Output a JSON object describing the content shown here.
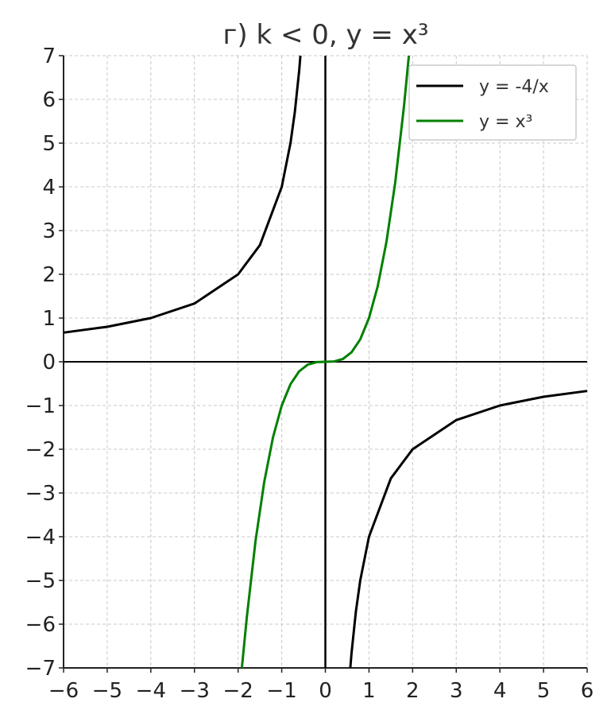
{
  "chart_data": {
    "type": "line",
    "title": "г) k < 0, y = x³",
    "xlabel": "",
    "ylabel": "",
    "xlim": [
      -6,
      6
    ],
    "ylim": [
      -7,
      7
    ],
    "grid": true,
    "legend_position": "top-right",
    "x_ticks": [
      -6,
      -5,
      -4,
      -3,
      -2,
      -1,
      0,
      1,
      2,
      3,
      4,
      5,
      6
    ],
    "y_ticks": [
      -7,
      -6,
      -5,
      -4,
      -3,
      -2,
      -1,
      0,
      1,
      2,
      3,
      4,
      5,
      6,
      7
    ],
    "x_tick_labels": [
      "−6",
      "−5",
      "−4",
      "−3",
      "−2",
      "−1",
      "0",
      "1",
      "2",
      "3",
      "4",
      "5",
      "6"
    ],
    "y_tick_labels": [
      "−7",
      "−6",
      "−5",
      "−4",
      "−3",
      "−2",
      "−1",
      "0",
      "1",
      "2",
      "3",
      "4",
      "5",
      "6",
      "7"
    ],
    "series": [
      {
        "name": "y = -4/x",
        "color": "#000000",
        "segments": [
          [
            [
              -6,
              0.667
            ],
            [
              -5,
              0.8
            ],
            [
              -4,
              1.0
            ],
            [
              -3,
              1.333
            ],
            [
              -2,
              2.0
            ],
            [
              -1.5,
              2.667
            ],
            [
              -1,
              4.0
            ],
            [
              -0.8,
              5.0
            ],
            [
              -0.7,
              5.714
            ],
            [
              -0.6,
              6.667
            ],
            [
              -0.571,
              7.0
            ]
          ],
          [
            [
              0.571,
              -7.0
            ],
            [
              0.6,
              -6.667
            ],
            [
              0.7,
              -5.714
            ],
            [
              0.8,
              -5.0
            ],
            [
              1,
              -4.0
            ],
            [
              1.5,
              -2.667
            ],
            [
              2,
              -2.0
            ],
            [
              3,
              -1.333
            ],
            [
              4,
              -1.0
            ],
            [
              5,
              -0.8
            ],
            [
              6,
              -0.667
            ]
          ]
        ]
      },
      {
        "name": "y = x³",
        "color": "#008000",
        "segments": [
          [
            [
              -1.913,
              -7.0
            ],
            [
              -1.8,
              -5.832
            ],
            [
              -1.6,
              -4.096
            ],
            [
              -1.4,
              -2.744
            ],
            [
              -1.2,
              -1.728
            ],
            [
              -1.0,
              -1.0
            ],
            [
              -0.8,
              -0.512
            ],
            [
              -0.6,
              -0.216
            ],
            [
              -0.4,
              -0.064
            ],
            [
              -0.2,
              -0.008
            ],
            [
              0,
              0
            ],
            [
              0.2,
              0.008
            ],
            [
              0.4,
              0.064
            ],
            [
              0.6,
              0.216
            ],
            [
              0.8,
              0.512
            ],
            [
              1.0,
              1.0
            ],
            [
              1.2,
              1.728
            ],
            [
              1.4,
              2.744
            ],
            [
              1.6,
              4.096
            ],
            [
              1.8,
              5.832
            ],
            [
              1.913,
              7.0
            ]
          ]
        ]
      }
    ]
  }
}
